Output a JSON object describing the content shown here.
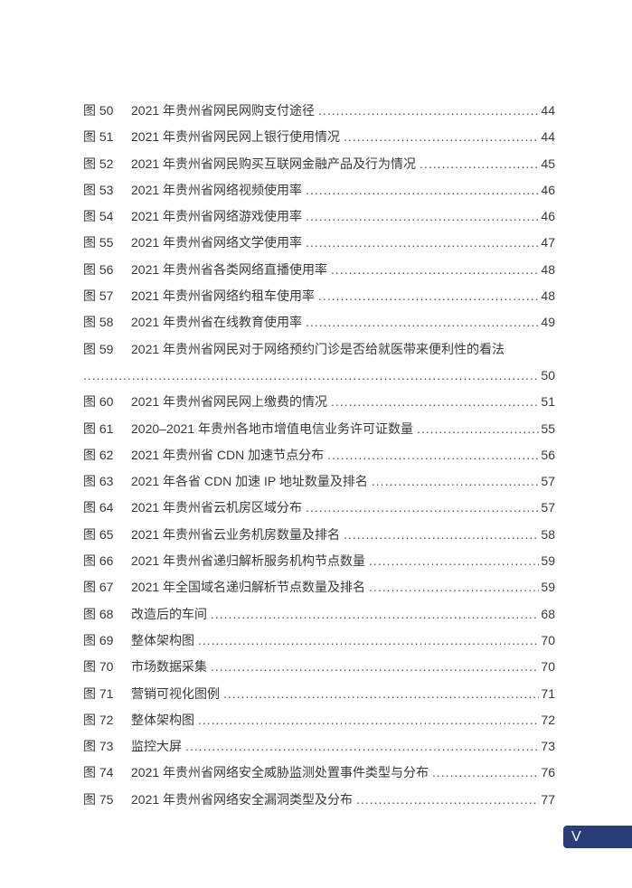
{
  "entries": [
    {
      "label": "图 50",
      "title": "2021 年贵州省网民网购支付途径",
      "page": "44"
    },
    {
      "label": "图 51",
      "title": "2021 年贵州省网民网上银行使用情况",
      "page": "44"
    },
    {
      "label": "图 52",
      "title": "2021 年贵州省网民购买互联网金融产品及行为情况",
      "page": "45"
    },
    {
      "label": "图 53",
      "title": "2021 年贵州省网络视频使用率",
      "page": "46"
    },
    {
      "label": "图 54",
      "title": "2021 年贵州省网络游戏使用率",
      "page": "46"
    },
    {
      "label": "图 55",
      "title": "2021 年贵州省网络文学使用率",
      "page": "47"
    },
    {
      "label": "图 56",
      "title": "2021 年贵州省各类网络直播使用率",
      "page": "48"
    },
    {
      "label": "图 57",
      "title": "2021 年贵州省网络约租车使用率",
      "page": "48"
    },
    {
      "label": "图 58",
      "title": "2021 年贵州省在线教育使用率",
      "page": "49"
    },
    {
      "label": "图 59",
      "title": "2021 年贵州省网民对于网络预约门诊是否给就医带来便利性的看法",
      "page": "50",
      "wrapped": true
    },
    {
      "label": "图 60",
      "title": "2021 年贵州省网民网上缴费的情况",
      "page": "51"
    },
    {
      "label": "图 61",
      "title": "2020–2021 年贵州各地市增值电信业务许可证数量",
      "page": "55"
    },
    {
      "label": "图 62",
      "title": "2021 年贵州省 CDN 加速节点分布",
      "page": "56"
    },
    {
      "label": "图 63",
      "title": "2021 年各省 CDN 加速 IP 地址数量及排名",
      "page": "57"
    },
    {
      "label": "图 64",
      "title": "2021 年贵州省云机房区域分布",
      "page": "57"
    },
    {
      "label": "图 65",
      "title": "2021 年贵州省云业务机房数量及排名",
      "page": "58"
    },
    {
      "label": "图 66",
      "title": "2021 年贵州省递归解析服务机构节点数量",
      "page": "59"
    },
    {
      "label": "图 67",
      "title": "2021 年全国域名递归解析节点数量及排名",
      "page": "59"
    },
    {
      "label": "图 68",
      "title": "改造后的车间",
      "page": "68"
    },
    {
      "label": "图 69",
      "title": "整体架构图",
      "page": "70"
    },
    {
      "label": "图 70",
      "title": "市场数据采集",
      "page": "70"
    },
    {
      "label": "图 71",
      "title": "营销可视化图例",
      "page": "71"
    },
    {
      "label": "图 72",
      "title": "整体架构图",
      "page": "72"
    },
    {
      "label": "图 73",
      "title": "监控大屏",
      "page": "73"
    },
    {
      "label": "图 74",
      "title": "2021 年贵州省网络安全威胁监测处置事件类型与分布",
      "page": "76"
    },
    {
      "label": "图 75",
      "title": "2021 年贵州省网络安全漏洞类型及分布",
      "page": "77"
    }
  ],
  "page_number": "V",
  "colors": {
    "badge": "#2a3d78",
    "text": "#3a3a3a"
  }
}
